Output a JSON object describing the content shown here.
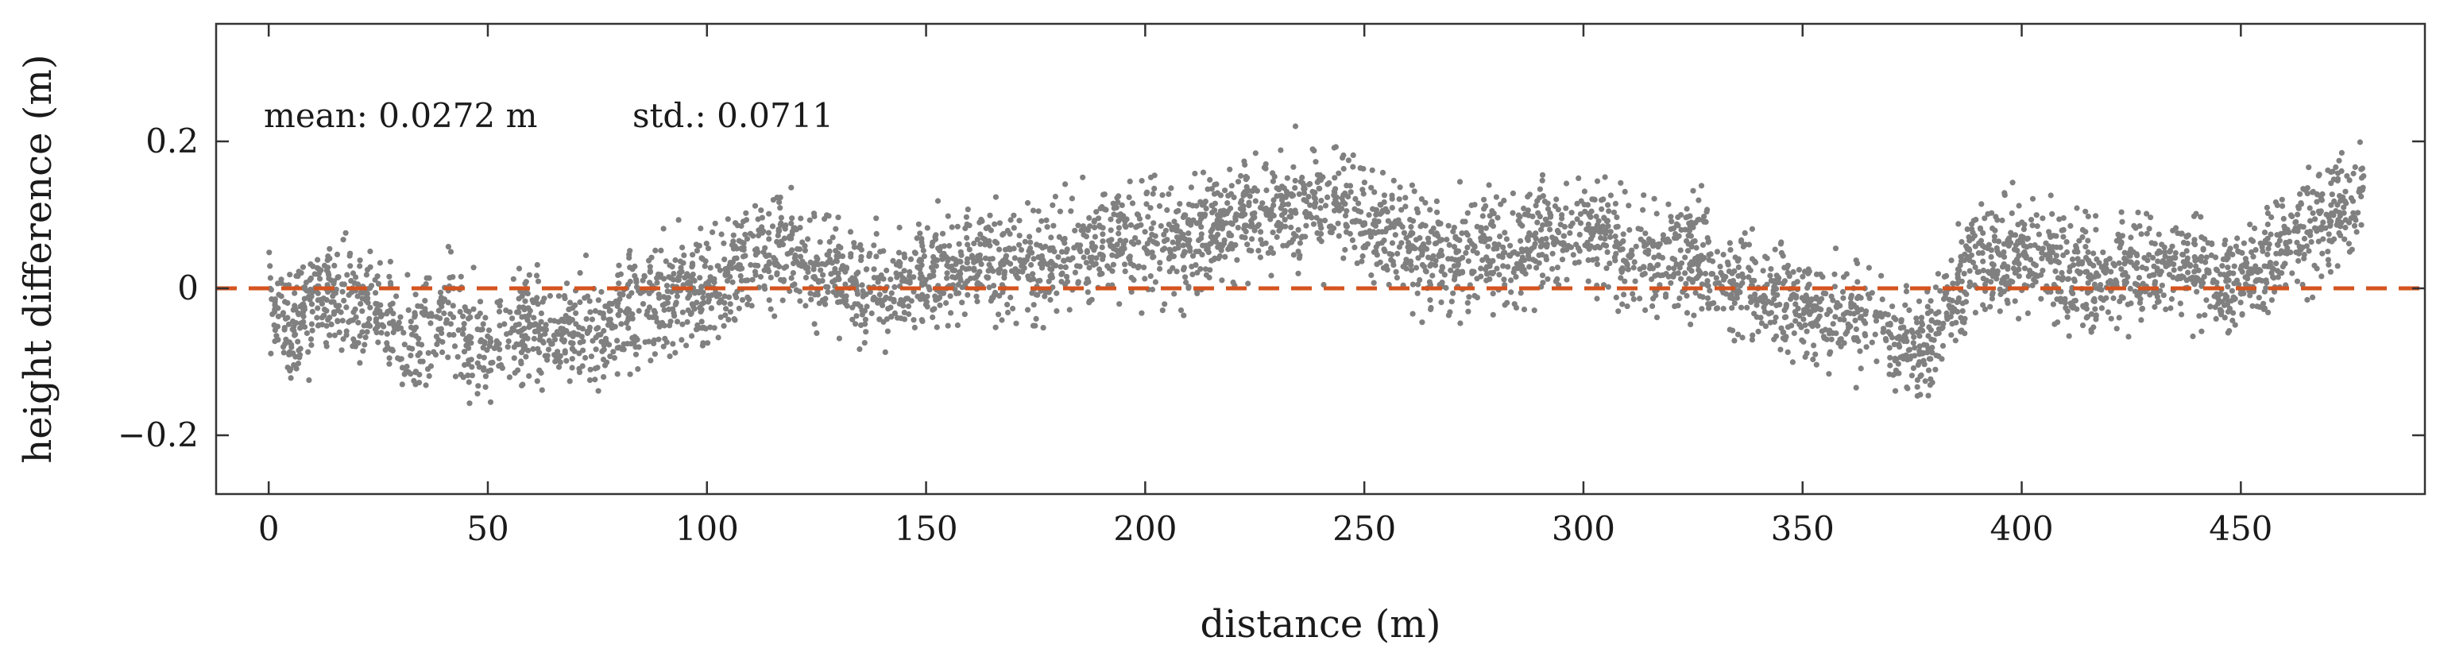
{
  "chart_data": {
    "type": "scatter",
    "xlabel": "distance (m)",
    "ylabel": "height difference (m)",
    "xlim": [
      -12,
      492
    ],
    "ylim": [
      -0.28,
      0.36
    ],
    "xticks": [
      0,
      50,
      100,
      150,
      200,
      250,
      300,
      350,
      400,
      450
    ],
    "xtick_labels": [
      "0",
      "50",
      "100",
      "150",
      "200",
      "250",
      "300",
      "350",
      "400",
      "450"
    ],
    "yticks": [
      -0.2,
      0,
      0.2
    ],
    "ytick_labels": [
      "−0.2",
      "0",
      "0.2"
    ],
    "annotations": {
      "mean": "mean: 0.0272 m",
      "std": "std.: 0.0711"
    },
    "reference_line": {
      "y": 0,
      "style": "dashed",
      "color": "#d4541f"
    },
    "point_color": "#808080",
    "grid": false,
    "series": [
      {
        "x": [
          0,
          5,
          10,
          15,
          20,
          25,
          30,
          35,
          40,
          45,
          50,
          55,
          60,
          65,
          70,
          75,
          80,
          85,
          90,
          95,
          100,
          105,
          110,
          115,
          120,
          125,
          130,
          135,
          140,
          145,
          150,
          155,
          160,
          165,
          170,
          175,
          180,
          185,
          190,
          195,
          200,
          205,
          210,
          215,
          220,
          225,
          230,
          235,
          240,
          245,
          250,
          255,
          260,
          265,
          270,
          275,
          280,
          285,
          290,
          295,
          300,
          305,
          310,
          315,
          320,
          325,
          330,
          335,
          340,
          345,
          350,
          355,
          360,
          365,
          370,
          375,
          380,
          385,
          390,
          395,
          400,
          405,
          410,
          415,
          420,
          425,
          430,
          435,
          440,
          445,
          450,
          455,
          460,
          465,
          470,
          475,
          478
        ],
        "y": [
          -0.02,
          -0.05,
          -0.02,
          -0.01,
          -0.02,
          -0.03,
          -0.06,
          -0.07,
          -0.04,
          -0.05,
          -0.08,
          -0.06,
          -0.05,
          -0.07,
          -0.05,
          -0.06,
          -0.04,
          -0.03,
          -0.01,
          0.0,
          -0.01,
          0.02,
          0.05,
          0.06,
          0.04,
          0.02,
          0.03,
          0.01,
          0.0,
          0.01,
          0.02,
          0.03,
          0.03,
          0.03,
          0.04,
          0.03,
          0.05,
          0.05,
          0.06,
          0.06,
          0.07,
          0.06,
          0.07,
          0.08,
          0.09,
          0.11,
          0.1,
          0.11,
          0.11,
          0.12,
          0.1,
          0.08,
          0.06,
          0.05,
          0.04,
          0.05,
          0.05,
          0.06,
          0.07,
          0.08,
          0.09,
          0.07,
          0.05,
          0.05,
          0.05,
          0.05,
          0.02,
          0.01,
          0.0,
          -0.02,
          -0.02,
          -0.03,
          -0.04,
          -0.02,
          -0.07,
          -0.08,
          -0.06,
          -0.02,
          0.05,
          0.04,
          0.05,
          0.04,
          0.02,
          0.01,
          0.02,
          0.03,
          0.03,
          0.03,
          0.02,
          0.01,
          0.02,
          0.03,
          0.06,
          0.08,
          0.1,
          0.11,
          0.13
        ]
      }
    ]
  }
}
